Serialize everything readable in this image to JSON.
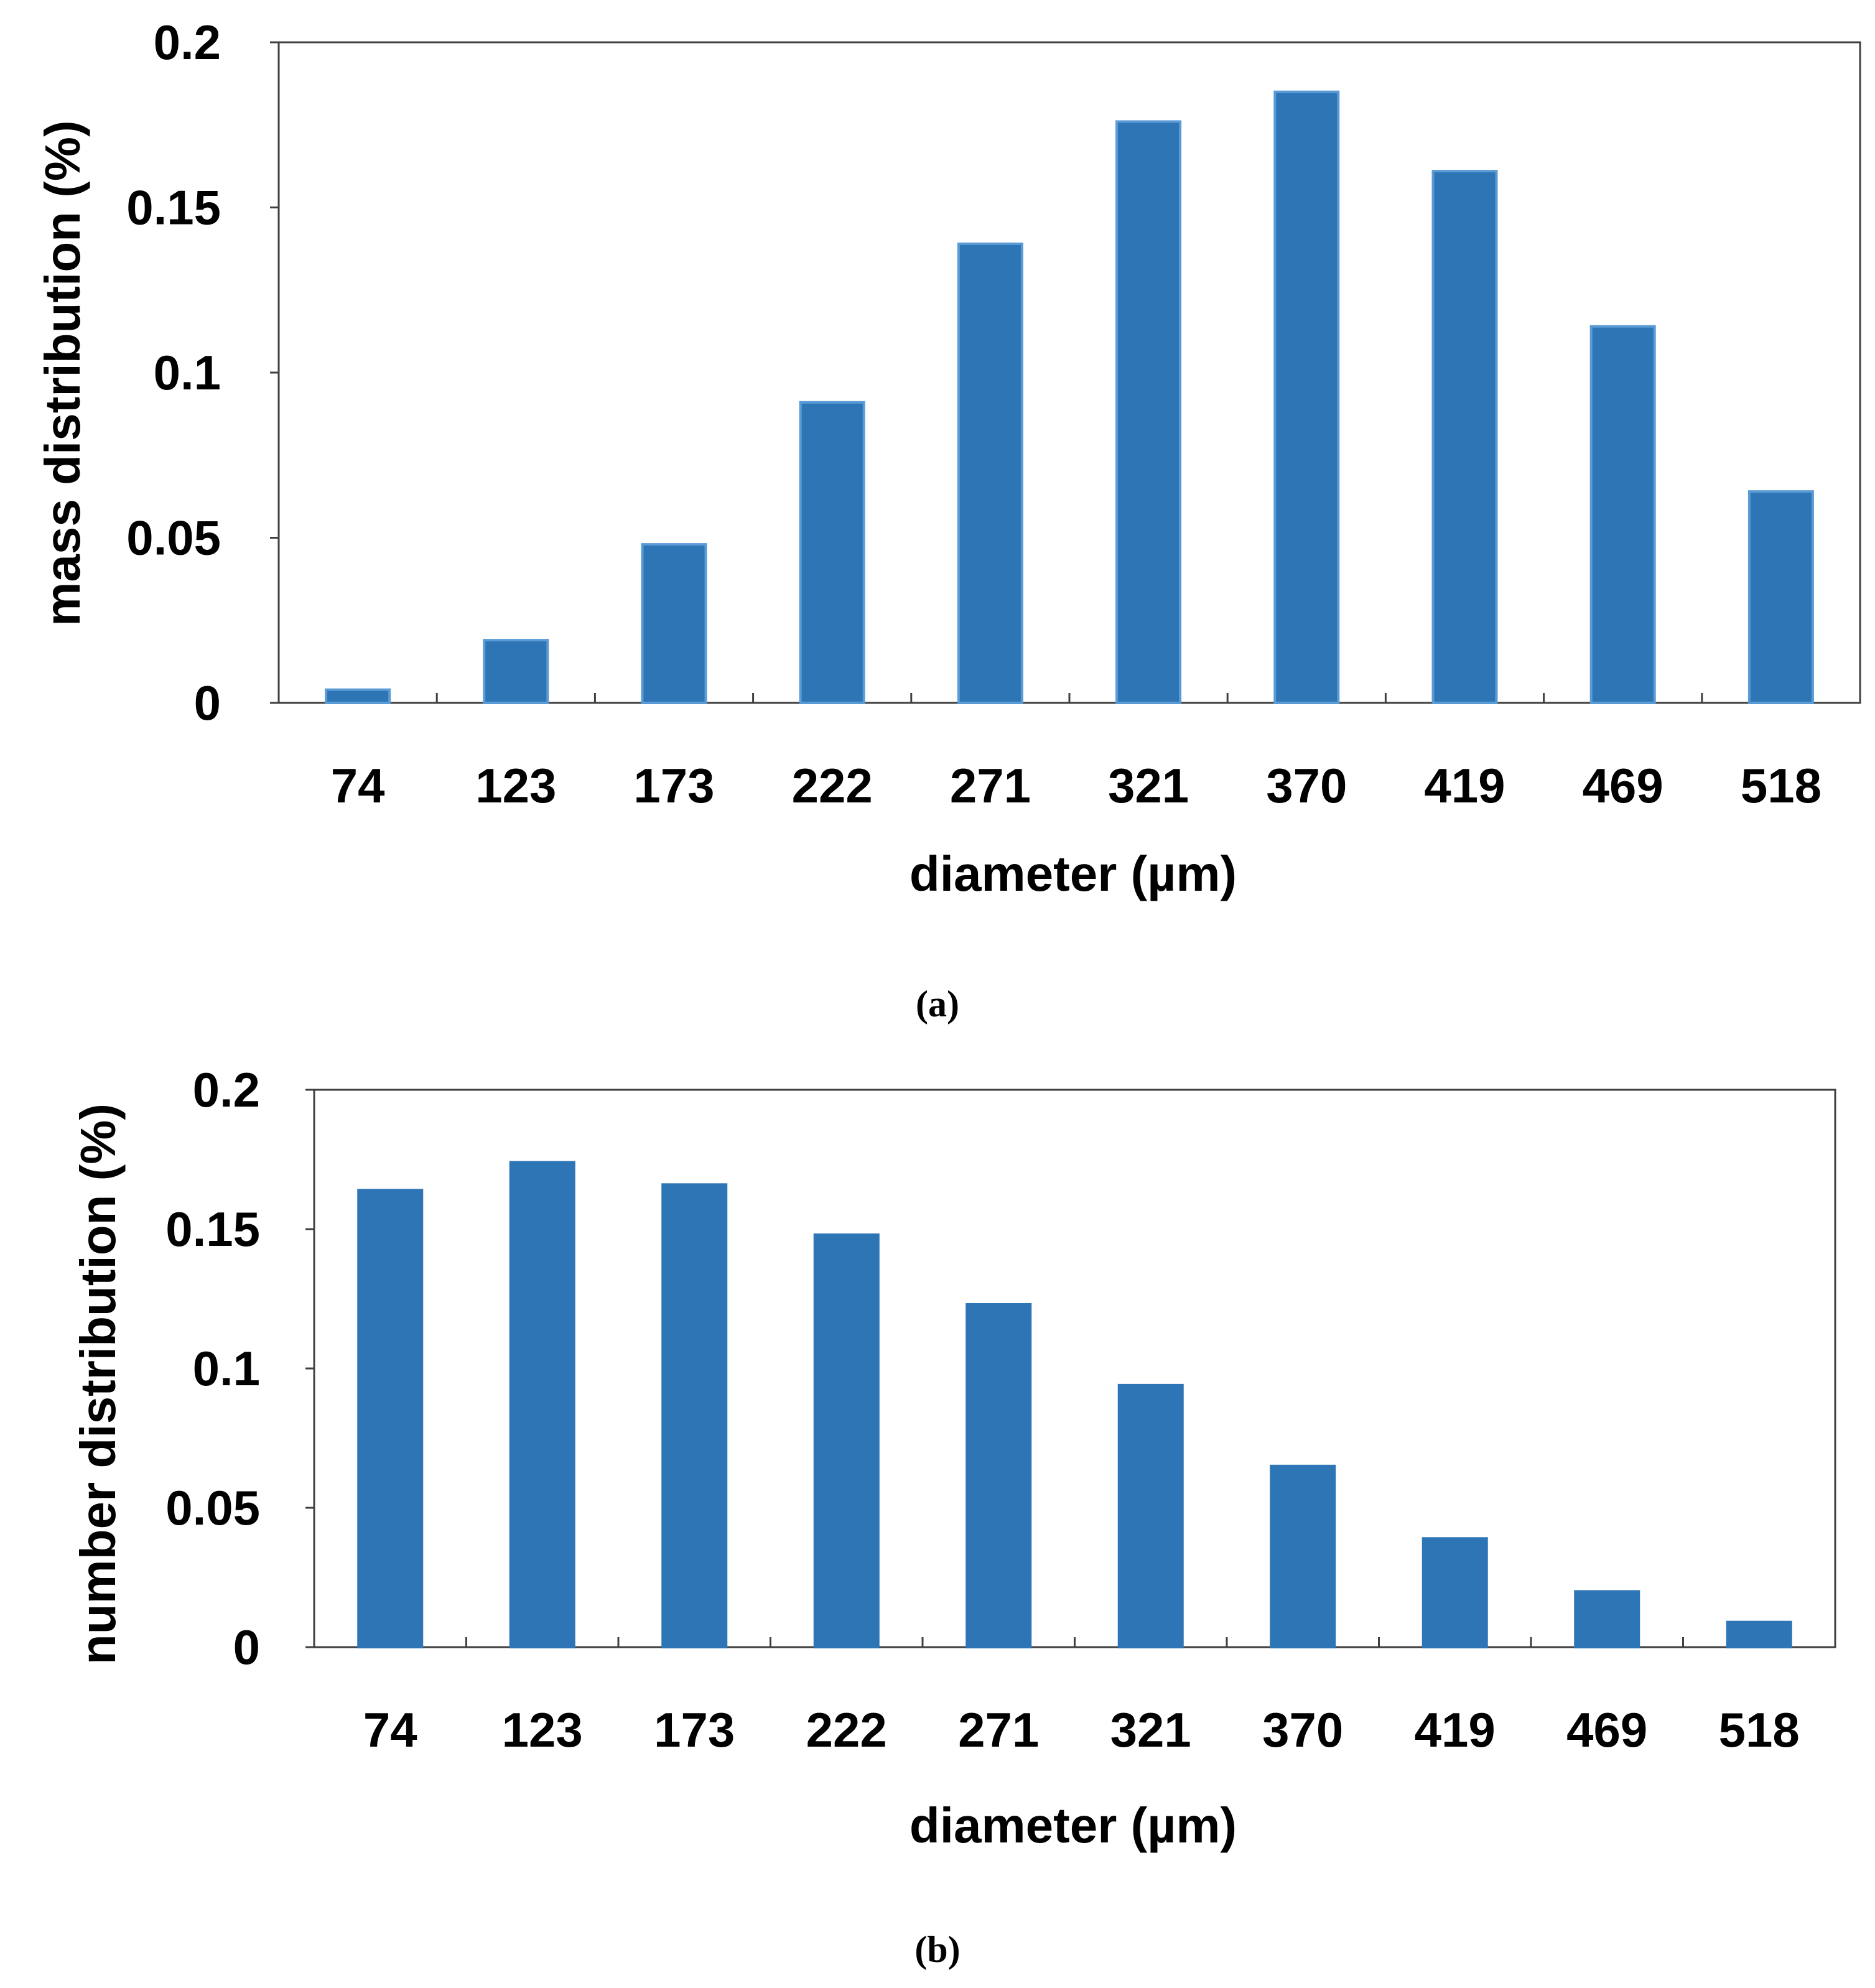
{
  "chart_data": [
    {
      "type": "bar",
      "panel": "a",
      "categories": [
        "74",
        "123",
        "173",
        "222",
        "271",
        "321",
        "370",
        "419",
        "469",
        "518"
      ],
      "values": [
        0.004,
        0.019,
        0.048,
        0.091,
        0.139,
        0.176,
        0.185,
        0.161,
        0.114,
        0.064
      ],
      "xlabel": "diameter (µm)",
      "ylabel": "mass distribution (%)",
      "ylim": [
        0,
        0.2
      ],
      "yticks": [
        "0",
        "0.05",
        "0.1",
        "0.15",
        "0.2"
      ],
      "ytick_values": [
        0,
        0.05,
        0.1,
        0.15,
        0.2
      ],
      "bar_color": "#2E75B6",
      "bar_edge_color": "#5B9BD5",
      "grid": false
    },
    {
      "type": "bar",
      "panel": "b",
      "categories": [
        "74",
        "123",
        "173",
        "222",
        "271",
        "321",
        "370",
        "419",
        "469",
        "518"
      ],
      "values": [
        0.164,
        0.174,
        0.166,
        0.148,
        0.123,
        0.094,
        0.065,
        0.039,
        0.02,
        0.009
      ],
      "xlabel": "diameter (µm)",
      "ylabel": "number distribution (%)",
      "ylim": [
        0,
        0.2
      ],
      "yticks": [
        "0",
        "0.05",
        "0.1",
        "0.15",
        "0.2"
      ],
      "ytick_values": [
        0,
        0.05,
        0.1,
        0.15,
        0.2
      ],
      "bar_color": "#2E75B6",
      "bar_edge_color": "#2E75B6",
      "grid": false
    }
  ],
  "captions": {
    "a": "(a)",
    "b": "(b)"
  }
}
